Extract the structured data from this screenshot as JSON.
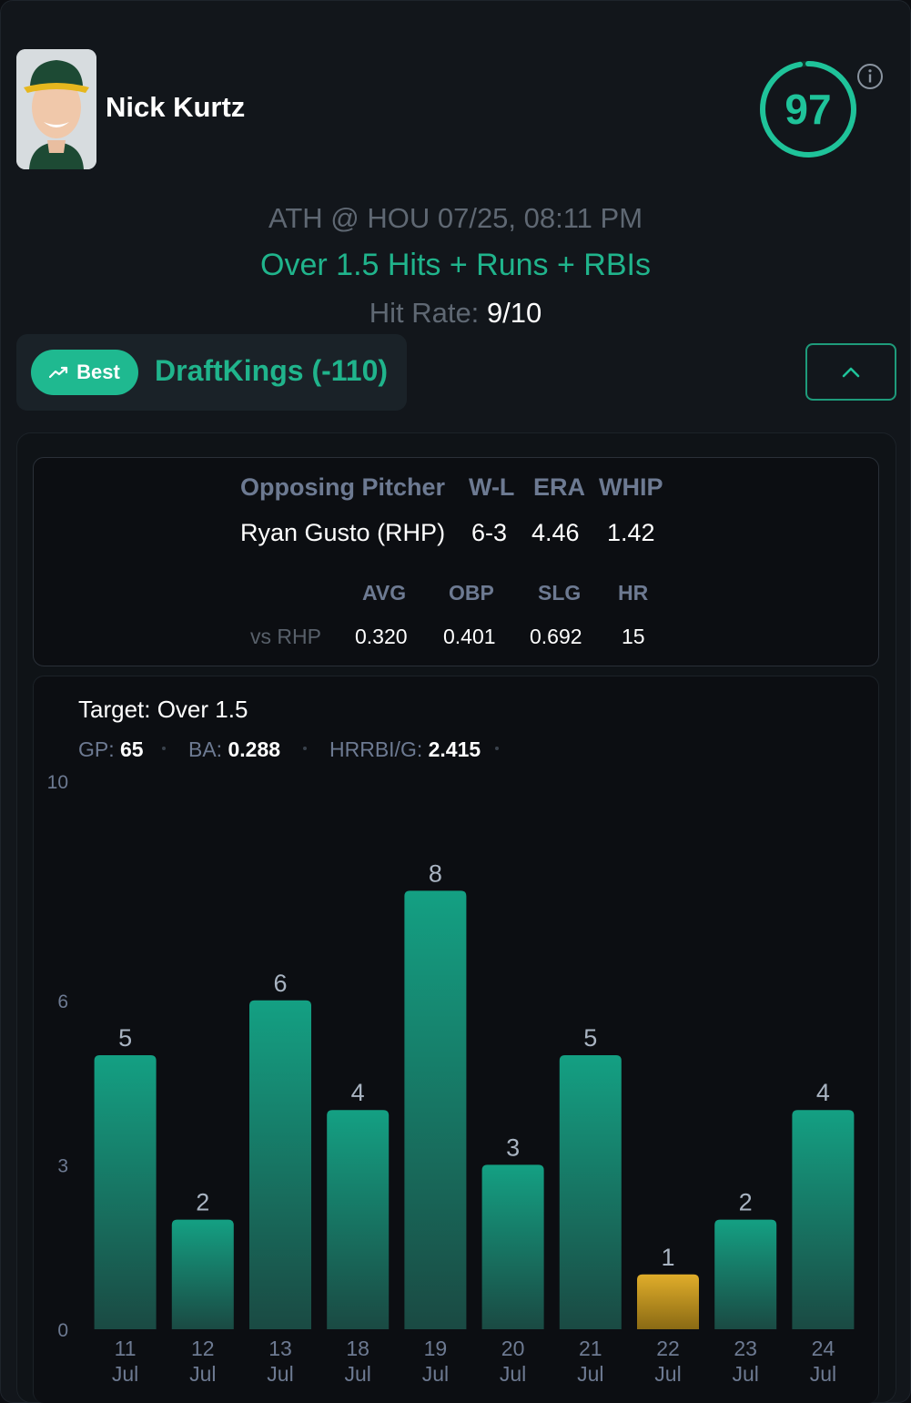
{
  "player": {
    "name": "Nick Kurtz",
    "score": "97"
  },
  "game": {
    "matchup": "ATH @ HOU 07/25, 08:11 PM",
    "prop": "Over 1.5 Hits + Runs + RBIs",
    "hit_rate_label": "Hit Rate:",
    "hit_rate_value": "9/10"
  },
  "book": {
    "badge": "Best",
    "name": "DraftKings (-110)"
  },
  "pitcher": {
    "headers": [
      "Opposing Pitcher",
      "W-L",
      "ERA",
      "WHIP"
    ],
    "values": [
      "Ryan Gusto (RHP)",
      "6-3",
      "4.46",
      "1.42"
    ],
    "split_headers": [
      "AVG",
      "OBP",
      "SLG",
      "HR"
    ],
    "split_label": "vs RHP",
    "split_values": [
      "0.320",
      "0.401",
      "0.692",
      "15"
    ]
  },
  "target": {
    "label": "Target: Over 1.5",
    "gp_label": "GP:",
    "gp_value": "65",
    "ba_label": "BA:",
    "ba_value": "0.288",
    "hrrbi_label": "HRRBI/G:",
    "hrrbi_value": "2.415"
  },
  "colors": {
    "accent": "#1fc39a",
    "hit_bar": "#14937a",
    "miss_bar": "#d9a521"
  },
  "chart_data": {
    "type": "bar",
    "categories": [
      [
        "11",
        "Jul"
      ],
      [
        "12",
        "Jul"
      ],
      [
        "13",
        "Jul"
      ],
      [
        "18",
        "Jul"
      ],
      [
        "19",
        "Jul"
      ],
      [
        "20",
        "Jul"
      ],
      [
        "21",
        "Jul"
      ],
      [
        "22",
        "Jul"
      ],
      [
        "23",
        "Jul"
      ],
      [
        "24",
        "Jul"
      ]
    ],
    "values": [
      5,
      2,
      6,
      4,
      8,
      3,
      5,
      1,
      2,
      4
    ],
    "yticks": [
      0,
      3,
      6,
      10
    ],
    "ylim": [
      0,
      10
    ],
    "threshold": 1.5,
    "grid": false
  }
}
